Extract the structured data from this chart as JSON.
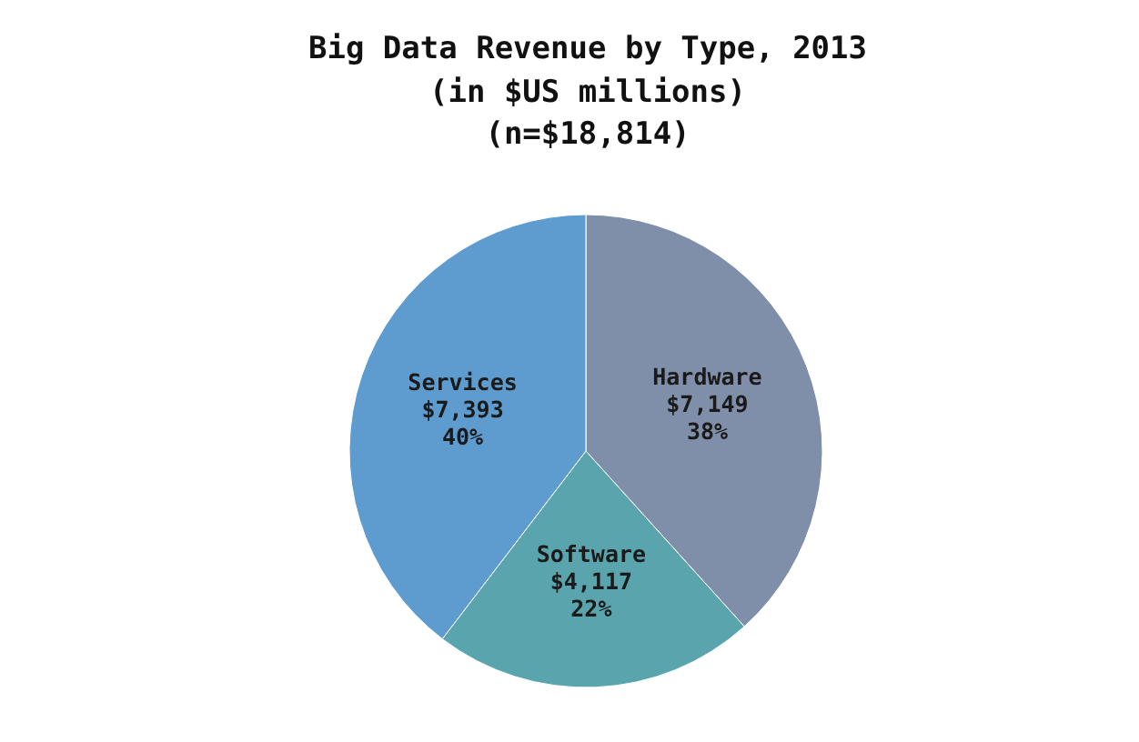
{
  "chart_data": {
    "type": "pie",
    "title": "Big Data Revenue by Type, 2013",
    "subtitle": "(in $US millions)\n(n=$18,814)",
    "categories": [
      "Hardware",
      "Software",
      "Services"
    ],
    "values": [
      7149,
      4117,
      7393
    ],
    "colors": [
      "#7f8faa",
      "#5aa4ae",
      "#5e9ccf"
    ],
    "value_labels": [
      "$7,149\n38%",
      "$4,117\n22%",
      "$7,393\n40%"
    ],
    "legend": false
  }
}
